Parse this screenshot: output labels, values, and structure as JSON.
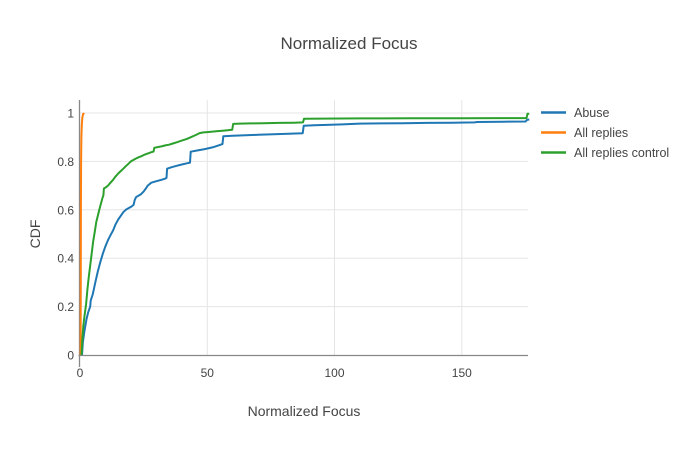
{
  "chart_data": {
    "type": "line",
    "subtype": "empirical-cdf",
    "title": "Normalized Focus",
    "xlabel": "Normalized Focus",
    "ylabel": "CDF",
    "xlim": [
      0,
      176
    ],
    "ylim": [
      0,
      1
    ],
    "xticks": [
      "0",
      "50",
      "100",
      "150"
    ],
    "xtick_values": [
      0,
      50,
      100,
      150
    ],
    "yticks": [
      "0",
      "0.2",
      "0.4",
      "0.6",
      "0.8",
      "1"
    ],
    "ytick_values": [
      0,
      0.2,
      0.4,
      0.6,
      0.8,
      1
    ],
    "grid": true,
    "legend_position": "right",
    "background_color": "#ffffff",
    "gridline_color": "#e5e5e5",
    "axisline_color": "#888888",
    "text_color": "#444444",
    "series": [
      {
        "name": "Abuse",
        "color": "#1f77b4",
        "points": [
          [
            0.8,
            0
          ],
          [
            1.1,
            0.05
          ],
          [
            1.6,
            0.09
          ],
          [
            2,
            0.115
          ],
          [
            2.6,
            0.15
          ],
          [
            3.2,
            0.175
          ],
          [
            4,
            0.2
          ],
          [
            4.2,
            0.225
          ],
          [
            5,
            0.25
          ],
          [
            6,
            0.3
          ],
          [
            7,
            0.345
          ],
          [
            8,
            0.385
          ],
          [
            9,
            0.42
          ],
          [
            10,
            0.45
          ],
          [
            11,
            0.475
          ],
          [
            12,
            0.495
          ],
          [
            13,
            0.515
          ],
          [
            14,
            0.54
          ],
          [
            15,
            0.56
          ],
          [
            16,
            0.575
          ],
          [
            17,
            0.59
          ],
          [
            18,
            0.6
          ],
          [
            19,
            0.606
          ],
          [
            20,
            0.612
          ],
          [
            21,
            0.62
          ],
          [
            21.5,
            0.64
          ],
          [
            22,
            0.652
          ],
          [
            24,
            0.665
          ],
          [
            25,
            0.675
          ],
          [
            26,
            0.69
          ],
          [
            26.6,
            0.7
          ],
          [
            28,
            0.712
          ],
          [
            30,
            0.718
          ],
          [
            32,
            0.724
          ],
          [
            33.5,
            0.729
          ],
          [
            34,
            0.732
          ],
          [
            34.2,
            0.77
          ],
          [
            36,
            0.776
          ],
          [
            38,
            0.782
          ],
          [
            40,
            0.787
          ],
          [
            42,
            0.792
          ],
          [
            43.2,
            0.795
          ],
          [
            43.5,
            0.84
          ],
          [
            46,
            0.845
          ],
          [
            49,
            0.851
          ],
          [
            52,
            0.858
          ],
          [
            55,
            0.868
          ],
          [
            56,
            0.872
          ],
          [
            56.3,
            0.904
          ],
          [
            60,
            0.906
          ],
          [
            65,
            0.908
          ],
          [
            70,
            0.91
          ],
          [
            76,
            0.912
          ],
          [
            82,
            0.914
          ],
          [
            87.5,
            0.916
          ],
          [
            87.9,
            0.947
          ],
          [
            92,
            0.949
          ],
          [
            97,
            0.951
          ],
          [
            103,
            0.953
          ],
          [
            110,
            0.956
          ],
          [
            118,
            0.957
          ],
          [
            127,
            0.958
          ],
          [
            136,
            0.959
          ],
          [
            146,
            0.96
          ],
          [
            155,
            0.961
          ],
          [
            156,
            0.963
          ],
          [
            166,
            0.964
          ],
          [
            175,
            0.965
          ],
          [
            175.7,
            0.972
          ],
          [
            176.5,
            0.973
          ]
        ]
      },
      {
        "name": "All replies",
        "color": "#ff7f0e",
        "points": [
          [
            0.25,
            0
          ],
          [
            0.3,
            0.35
          ],
          [
            0.35,
            0.6
          ],
          [
            0.45,
            0.8
          ],
          [
            0.55,
            0.9
          ],
          [
            0.7,
            0.95
          ],
          [
            0.9,
            0.98
          ],
          [
            1.2,
            0.995
          ],
          [
            1.6,
            1.0
          ]
        ]
      },
      {
        "name": "All replies control",
        "color": "#2ca02c",
        "points": [
          [
            0.6,
            0
          ],
          [
            0.9,
            0.06
          ],
          [
            1.3,
            0.12
          ],
          [
            1.8,
            0.165
          ],
          [
            2.4,
            0.21
          ],
          [
            2.9,
            0.27
          ],
          [
            3.4,
            0.32
          ],
          [
            4,
            0.37
          ],
          [
            4.6,
            0.42
          ],
          [
            5.2,
            0.47
          ],
          [
            5.8,
            0.51
          ],
          [
            6.4,
            0.55
          ],
          [
            7,
            0.575
          ],
          [
            7.6,
            0.6
          ],
          [
            8.2,
            0.625
          ],
          [
            8.8,
            0.648
          ],
          [
            9.2,
            0.66
          ],
          [
            9.4,
            0.688
          ],
          [
            10.2,
            0.693
          ],
          [
            11,
            0.7
          ],
          [
            12,
            0.712
          ],
          [
            13,
            0.724
          ],
          [
            14,
            0.738
          ],
          [
            15,
            0.75
          ],
          [
            16,
            0.76
          ],
          [
            17,
            0.77
          ],
          [
            18,
            0.78
          ],
          [
            19,
            0.79
          ],
          [
            20,
            0.8
          ],
          [
            21,
            0.806
          ],
          [
            22,
            0.812
          ],
          [
            23,
            0.817
          ],
          [
            24,
            0.821
          ],
          [
            25,
            0.826
          ],
          [
            26,
            0.83
          ],
          [
            27,
            0.834
          ],
          [
            28,
            0.838
          ],
          [
            28.9,
            0.841
          ],
          [
            29.2,
            0.856
          ],
          [
            30.5,
            0.859
          ],
          [
            32,
            0.862
          ],
          [
            33.5,
            0.866
          ],
          [
            35,
            0.869
          ],
          [
            36.5,
            0.874
          ],
          [
            38,
            0.879
          ],
          [
            40,
            0.886
          ],
          [
            42,
            0.893
          ],
          [
            44,
            0.902
          ],
          [
            45.5,
            0.909
          ],
          [
            47,
            0.917
          ],
          [
            48.5,
            0.92
          ],
          [
            50,
            0.921
          ],
          [
            52,
            0.923
          ],
          [
            54,
            0.925
          ],
          [
            56,
            0.927
          ],
          [
            58,
            0.929
          ],
          [
            59.8,
            0.931
          ],
          [
            60.2,
            0.955
          ],
          [
            63,
            0.956
          ],
          [
            67,
            0.957
          ],
          [
            72,
            0.958
          ],
          [
            78,
            0.959
          ],
          [
            84,
            0.96
          ],
          [
            87.6,
            0.961
          ],
          [
            88,
            0.976
          ],
          [
            95,
            0.977
          ],
          [
            110,
            0.9775
          ],
          [
            130,
            0.978
          ],
          [
            150,
            0.9785
          ],
          [
            165,
            0.979
          ],
          [
            175.4,
            0.979
          ],
          [
            175.8,
            0.997
          ],
          [
            176.5,
            0.997
          ]
        ]
      }
    ]
  }
}
